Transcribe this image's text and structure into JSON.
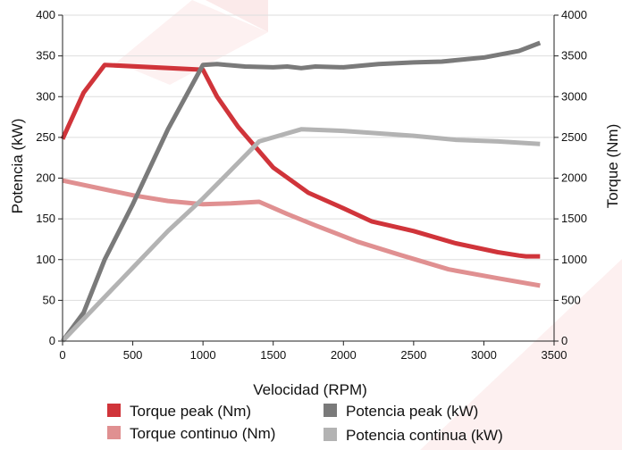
{
  "chart_data": {
    "type": "line",
    "xlabel": "Velocidad (RPM)",
    "ylabel_left": "Potencia (kW)",
    "ylabel_right": "Torque (Nm)",
    "xlim": [
      0,
      3500
    ],
    "ylim_left": [
      0,
      400
    ],
    "ylim_right": [
      0,
      4000
    ],
    "x_ticks": [
      "0",
      "500",
      "1000",
      "1500",
      "2000",
      "2500",
      "3000",
      "3500"
    ],
    "y_left_ticks": [
      "0",
      "50",
      "100",
      "150",
      "200",
      "250",
      "300",
      "350",
      "400"
    ],
    "y_right_ticks": [
      "0",
      "500",
      "1000",
      "1500",
      "2000",
      "2500",
      "3000",
      "3500",
      "4000"
    ],
    "grid": "horizontal",
    "legend_position": "bottom",
    "series": [
      {
        "name": "Torque peak (Nm)",
        "axis": "right",
        "color": "#d0343a",
        "x": [
          0,
          150,
          300,
          1000,
          1100,
          1250,
          1500,
          1750,
          2000,
          2200,
          2500,
          2800,
          3100,
          3250,
          3300,
          3400
        ],
        "y": [
          2480,
          3050,
          3390,
          3330,
          3000,
          2630,
          2130,
          1820,
          1630,
          1470,
          1350,
          1200,
          1090,
          1050,
          1040,
          1040
        ]
      },
      {
        "name": "Torque continuo (Nm)",
        "axis": "right",
        "color": "#e09091",
        "x": [
          0,
          250,
          500,
          750,
          1000,
          1200,
          1400,
          1600,
          1800,
          2100,
          2400,
          2750,
          3100,
          3400
        ],
        "y": [
          1970,
          1880,
          1790,
          1720,
          1680,
          1690,
          1710,
          1560,
          1420,
          1220,
          1060,
          880,
          770,
          680
        ]
      },
      {
        "name": "Potencia peak (kW)",
        "axis": "left",
        "color": "#7a7a7a",
        "x": [
          0,
          150,
          300,
          500,
          750,
          1000,
          1100,
          1300,
          1500,
          1600,
          1700,
          1800,
          2000,
          2250,
          2500,
          2700,
          3000,
          3250,
          3400
        ],
        "y": [
          0,
          35,
          100,
          168,
          260,
          339,
          340,
          337,
          336,
          337,
          335,
          337,
          336,
          340,
          342,
          343,
          348,
          356,
          366
        ]
      },
      {
        "name": "Potencia continua (kW)",
        "axis": "left",
        "color": "#b3b3b3",
        "x": [
          0,
          250,
          500,
          750,
          1000,
          1200,
          1400,
          1700,
          2000,
          2500,
          2800,
          3100,
          3400
        ],
        "y": [
          0,
          45,
          90,
          135,
          175,
          210,
          245,
          260,
          258,
          252,
          247,
          245,
          242
        ]
      }
    ]
  }
}
